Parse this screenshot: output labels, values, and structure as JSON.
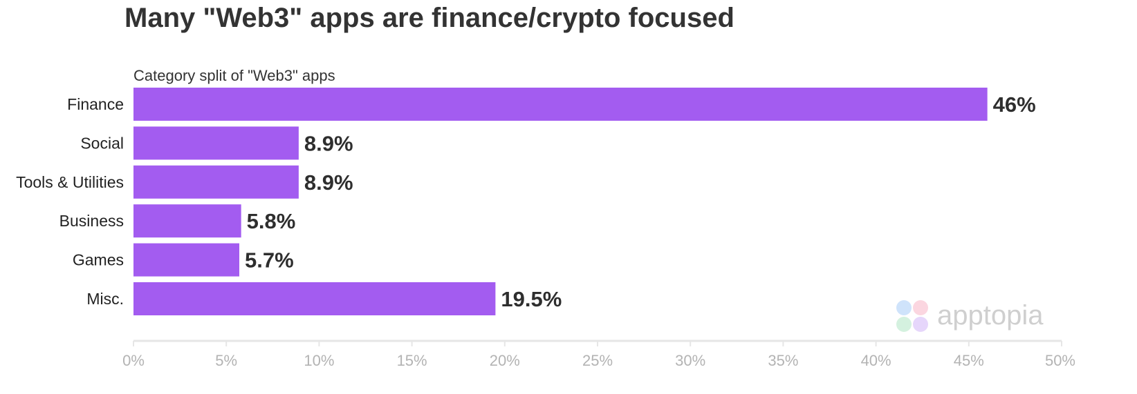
{
  "title": "Many \"Web3\" apps are finance/crypto focused",
  "brand": {
    "name": "apptopia"
  },
  "colors": {
    "bar": "#a35cf0",
    "axis": "#e6e6e6",
    "tick_text": "#b3b3b3",
    "title_text": "#333333"
  },
  "chart_data": {
    "type": "bar",
    "orientation": "horizontal",
    "title": "Many \"Web3\" apps are finance/crypto focused",
    "subtitle": "Category split of \"Web3\" apps",
    "categories": [
      "Finance",
      "Social",
      "Tools & Utilities",
      "Business",
      "Games",
      "Misc."
    ],
    "values": [
      46,
      8.9,
      8.9,
      5.8,
      5.7,
      19.5
    ],
    "value_labels": [
      "46%",
      "8.9%",
      "8.9%",
      "5.8%",
      "5.7%",
      "19.5%"
    ],
    "xlim": [
      0,
      50
    ],
    "x_ticks": [
      0,
      5,
      10,
      15,
      20,
      25,
      30,
      35,
      40,
      45,
      50
    ],
    "x_tick_labels": [
      "0%",
      "5%",
      "10%",
      "15%",
      "20%",
      "25%",
      "30%",
      "35%",
      "40%",
      "45%",
      "50%"
    ],
    "xlabel": "",
    "ylabel": "",
    "grid": false,
    "legend": "none"
  }
}
